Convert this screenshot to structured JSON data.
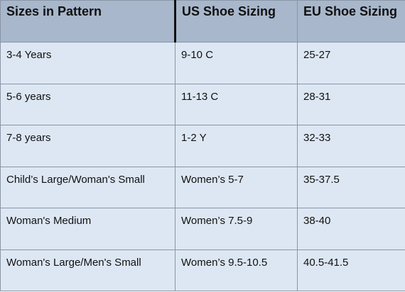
{
  "table": {
    "header": [
      "Sizes in Pattern",
      "US Shoe Sizing",
      "EU Shoe Sizing"
    ],
    "rows": [
      [
        "3-4 Years",
        "9-10 C",
        "25-27"
      ],
      [
        "5-6 years",
        "11-13 C",
        "28-31"
      ],
      [
        "7-8 years",
        "1-2 Y",
        "32-33"
      ],
      [
        "Child’s Large/Woman's Small",
        "Women’s 5-7",
        "35-37.5"
      ],
      [
        "Woman's Medium",
        "Women’s 7.5-9",
        "38-40"
      ],
      [
        "Woman's Large/Men's Small",
        "Women’s 9.5-10.5",
        "40.5-41.5"
      ]
    ]
  }
}
